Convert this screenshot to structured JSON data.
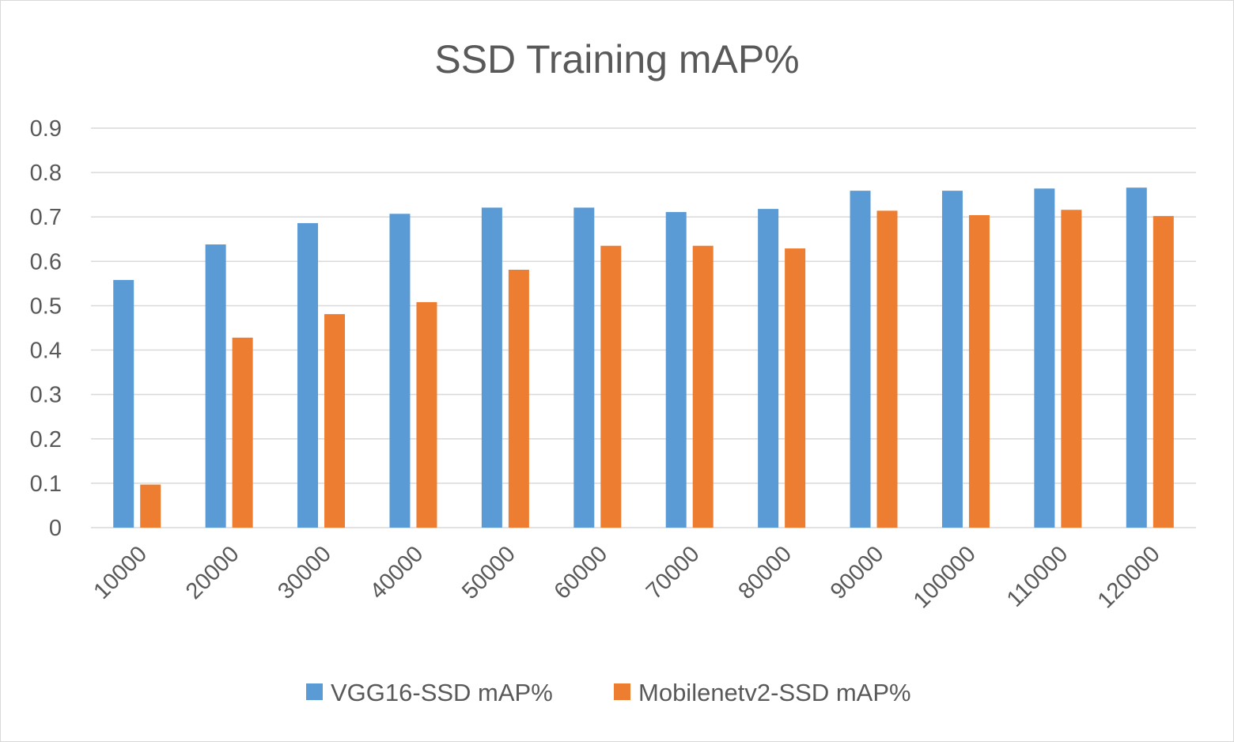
{
  "chart_data": {
    "type": "bar",
    "title": "SSD Training mAP%",
    "xlabel": "",
    "ylabel": "",
    "categories": [
      "10000",
      "20000",
      "30000",
      "40000",
      "50000",
      "60000",
      "70000",
      "80000",
      "90000",
      "100000",
      "110000",
      "120000"
    ],
    "series": [
      {
        "name": "VGG16-SSD mAP%",
        "color": "#5b9bd5",
        "values": [
          0.558,
          0.638,
          0.686,
          0.707,
          0.721,
          0.721,
          0.711,
          0.718,
          0.759,
          0.759,
          0.764,
          0.766
        ]
      },
      {
        "name": "Mobilenetv2-SSD mAP%",
        "color": "#ed7d31",
        "values": [
          0.097,
          0.428,
          0.481,
          0.508,
          0.581,
          0.635,
          0.635,
          0.629,
          0.714,
          0.704,
          0.716,
          0.702
        ]
      }
    ],
    "ylim": [
      0,
      0.9
    ],
    "yticks": [
      "0",
      "0.1",
      "0.2",
      "0.3",
      "0.4",
      "0.5",
      "0.6",
      "0.7",
      "0.8",
      "0.9"
    ],
    "grid": true,
    "gridline_color": "#d9d9d9",
    "legend_position": "bottom"
  }
}
